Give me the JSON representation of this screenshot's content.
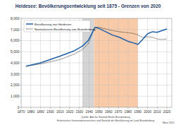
{
  "chart_data": {
    "type": "line",
    "title": "Heidesee: Bevölkerungsentwicklung seit 1875 - Grenzen von 2020",
    "x": [
      1875,
      1890,
      1910,
      1925,
      1933,
      1939,
      1946,
      1950,
      1964,
      1971,
      1981,
      1985,
      1989,
      1990,
      1995,
      2000,
      2005,
      2010,
      2015,
      2020
    ],
    "series": [
      {
        "name": "Bevölkerung von Heidesee",
        "color": "#1f5fa8",
        "line_style": "solid",
        "values": [
          3700,
          4000,
          4600,
          5100,
          5500,
          6000,
          7200,
          7100,
          6500,
          6300,
          5900,
          5800,
          5700,
          5650,
          6100,
          6600,
          6800,
          6750,
          6900,
          7050
        ]
      },
      {
        "name": "Normalisierte Bevölkerung von Brandenburg",
        "color": "#333333",
        "line_style": "dotted",
        "values": [
          3700,
          3900,
          4300,
          4800,
          5200,
          5700,
          7200,
          7200,
          6900,
          6800,
          6700,
          6650,
          6550,
          6500,
          6300,
          6350,
          6300,
          6150,
          6100,
          6150
        ]
      }
    ],
    "shaded_periods": [
      {
        "start": 1933,
        "end": 1945,
        "color": "#d4d4d4"
      },
      {
        "start": 1945,
        "end": 1990,
        "color": "#f8caa8"
      }
    ],
    "xlim": [
      1870,
      2025
    ],
    "xticks": [
      1870,
      1880,
      1890,
      1900,
      1910,
      1920,
      1930,
      1940,
      1950,
      1960,
      1970,
      1980,
      1990,
      2000,
      2010,
      2020
    ],
    "ylim": [
      0,
      8000
    ],
    "yticks": [
      0,
      {
        "value": 1000,
        "label": "1,000"
      },
      {
        "value": 2000,
        "label": "2,000"
      },
      {
        "value": 3000,
        "label": "3,000"
      },
      {
        "value": 4000,
        "label": "4,000"
      },
      {
        "value": 5000,
        "label": "5,000"
      },
      {
        "value": 6000,
        "label": "6,000"
      },
      {
        "value": 7000,
        "label": "7,000"
      },
      {
        "value": 8000,
        "label": "8,000"
      }
    ],
    "grid": true,
    "legend": "upper left",
    "source": [
      "Quelle: Amt für Statistik Berlin-Brandenburg",
      "Historisches Gemeindeverzeichnis und Statistik der Bevölkerung im Land Brandenburg"
    ],
    "date": "März 2021"
  }
}
